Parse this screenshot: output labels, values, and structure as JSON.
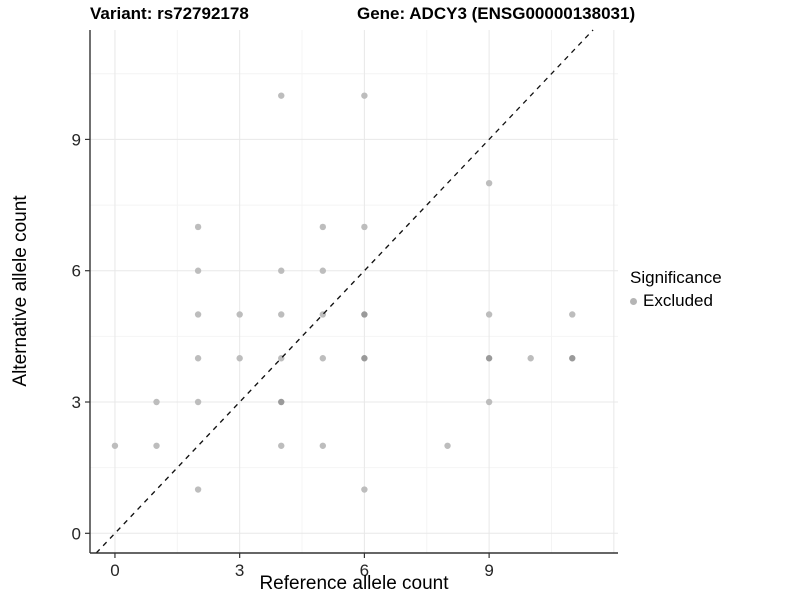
{
  "chart_data": {
    "type": "scatter",
    "titles": {
      "left": "Variant: rs72792178",
      "right": "Gene: ADCY3 (ENSG00000138031)"
    },
    "xlabel": "Reference allele count",
    "ylabel": "Alternative allele count",
    "x_ticks": [
      0,
      3,
      6,
      9
    ],
    "y_ticks": [
      0,
      3,
      6,
      9
    ],
    "x_major_grid": [
      0,
      3,
      6,
      9,
      12
    ],
    "y_major_grid": [
      0,
      3,
      6,
      9
    ],
    "x_minor_grid": [
      1.5,
      4.5,
      7.5,
      10.5
    ],
    "y_minor_grid": [
      1.5,
      4.5,
      7.5,
      10.5
    ],
    "xlim": [
      -0.6,
      12.1
    ],
    "ylim": [
      -0.45,
      11.5
    ],
    "grid": "on",
    "identity_line": {
      "style": "dashed",
      "slope": 1,
      "intercept": 0
    },
    "legend": {
      "title": "Significance",
      "position": "right",
      "entries": [
        {
          "label": "Excluded",
          "color": "#b5b5b5"
        }
      ]
    },
    "colors": {
      "point": "#bdbdbd",
      "point_dark": "#9a9a9a",
      "grid_major": "#e8e8e8",
      "grid_minor": "#f4f4f4",
      "axis_line": "#333333",
      "tick_text": "#262626",
      "identity_line": "#111111"
    },
    "points": [
      [
        4,
        10,
        0
      ],
      [
        6,
        10,
        0
      ],
      [
        9,
        8,
        0
      ],
      [
        2,
        7,
        0
      ],
      [
        5,
        7,
        0
      ],
      [
        6,
        7,
        0
      ],
      [
        2,
        6,
        0
      ],
      [
        4,
        6,
        0
      ],
      [
        5,
        6,
        0
      ],
      [
        2,
        5,
        0
      ],
      [
        3,
        5,
        0
      ],
      [
        4,
        5,
        0
      ],
      [
        5,
        5,
        0
      ],
      [
        6,
        5,
        1
      ],
      [
        9,
        5,
        0
      ],
      [
        11,
        5,
        0
      ],
      [
        2,
        4,
        0
      ],
      [
        3,
        4,
        0
      ],
      [
        4,
        4,
        0
      ],
      [
        5,
        4,
        0
      ],
      [
        6,
        4,
        1
      ],
      [
        9,
        4,
        1
      ],
      [
        10,
        4,
        0
      ],
      [
        11,
        4,
        1
      ],
      [
        1,
        3,
        0
      ],
      [
        2,
        3,
        0
      ],
      [
        4,
        3,
        1
      ],
      [
        9,
        3,
        0
      ],
      [
        0,
        2,
        0
      ],
      [
        1,
        2,
        0
      ],
      [
        4,
        2,
        0
      ],
      [
        5,
        2,
        0
      ],
      [
        8,
        2,
        0
      ],
      [
        2,
        1,
        0
      ],
      [
        6,
        1,
        0
      ]
    ]
  }
}
